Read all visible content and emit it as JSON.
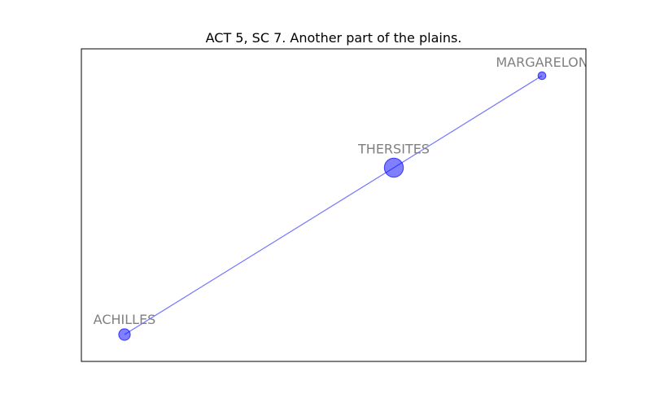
{
  "title": "ACT 5, SC 7. Another part of the plains.",
  "colors": {
    "node_fill": "#0000ff",
    "edge": "#0000ff",
    "label": "#808080",
    "axes": "#000000"
  },
  "network": {
    "nodes": [
      {
        "id": "ACHILLES",
        "label": "ACHILLES",
        "weight": 2
      },
      {
        "id": "THERSITES",
        "label": "THERSITES",
        "weight": 4
      },
      {
        "id": "MARGARELON",
        "label": "MARGARELON",
        "weight": 1
      }
    ],
    "edges": [
      {
        "source": "ACHILLES",
        "target": "THERSITES"
      },
      {
        "source": "THERSITES",
        "target": "MARGARELON"
      }
    ]
  }
}
